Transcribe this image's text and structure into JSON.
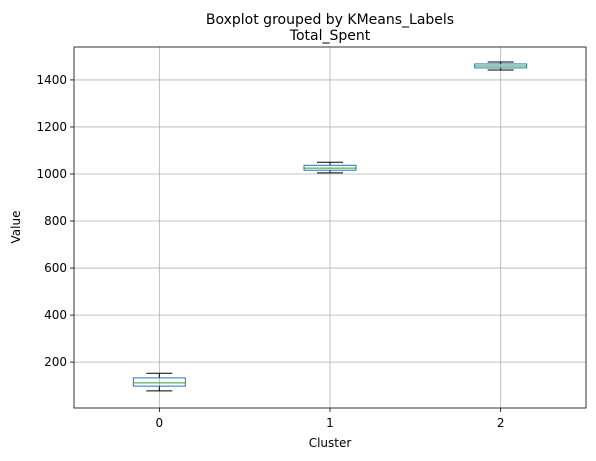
{
  "chart_data": {
    "type": "boxplot",
    "suptitle": "Boxplot grouped by KMeans_Labels",
    "title": "Total_Spent",
    "xlabel": "Cluster",
    "ylabel": "Value",
    "categories": [
      "0",
      "1",
      "2"
    ],
    "yticks": [
      200,
      400,
      600,
      800,
      1000,
      1200,
      1400
    ],
    "ylim": [
      5,
      1540
    ],
    "grid": true,
    "boxes": [
      {
        "category": "0",
        "whisker_low": 78,
        "q1": 98,
        "median": 112,
        "q3": 133,
        "whisker_high": 153
      },
      {
        "category": "1",
        "whisker_low": 1005,
        "q1": 1016,
        "median": 1025,
        "q3": 1037,
        "whisker_high": 1050
      },
      {
        "category": "2",
        "whisker_low": 1442,
        "q1": 1451,
        "median": 1459,
        "q3": 1468,
        "whisker_high": 1476
      }
    ],
    "colors": {
      "box": "#1f77b4",
      "median": "#2ca02c",
      "whisker": "#000000",
      "grid": "#b0b0b0",
      "axes": "#000000"
    }
  }
}
